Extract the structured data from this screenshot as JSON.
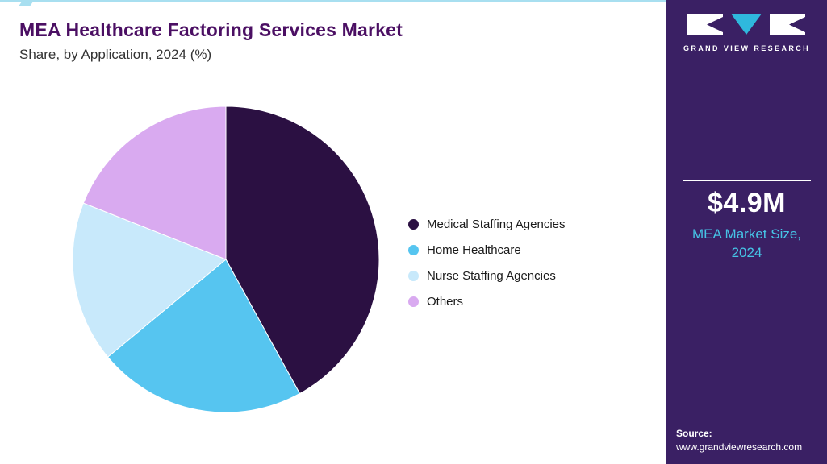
{
  "header": {
    "title": "MEA Healthcare Factoring Services Market",
    "subtitle": "Share, by Application, 2024 (%)"
  },
  "chart_data": {
    "type": "pie",
    "title": "MEA Healthcare Factoring Services Market Share, by Application, 2024 (%)",
    "unit": "%",
    "categories": [
      "Medical Staffing Agencies",
      "Home Healthcare",
      "Nurse Staffing Agencies",
      "Others"
    ],
    "values": [
      42,
      22,
      17,
      19
    ],
    "colors": [
      "#2b1042",
      "#56c5f0",
      "#c8e9fb",
      "#d9aaf0"
    ],
    "legend_position": "right",
    "start_angle_deg": 0,
    "direction": "clockwise"
  },
  "sidebar": {
    "brand": "GRAND VIEW RESEARCH",
    "market_size_value": "$4.9M",
    "market_size_label": "MEA Market Size, 2024",
    "source_label": "Source:",
    "source_url": "www.grandviewresearch.com",
    "background_color": "#3a2064",
    "accent_color": "#46c4e6"
  }
}
